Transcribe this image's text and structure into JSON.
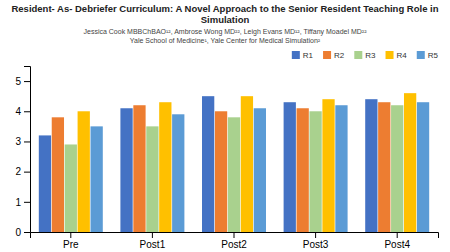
{
  "chart_data": {
    "type": "bar",
    "title": "Resident- As- Debriefer Curriculum: A Novel Approach to the Senior Resident Teaching Role in Simulation",
    "subtitle": "Jessica Cook MBBChBAO¹², Ambrose Wong MD²², Leigh Evans MD¹², Tiffany Moadel MD²²",
    "annotations": [
      "Yale School of Medicine¹, Yale Center for Medical Simulation²"
    ],
    "categories": [
      "Pre",
      "Post1",
      "Post2",
      "Post3",
      "Post4"
    ],
    "series": [
      {
        "name": "R1",
        "color": "#4472c4",
        "values": [
          3.2,
          4.1,
          4.5,
          4.3,
          4.4
        ]
      },
      {
        "name": "R2",
        "color": "#ed7d31",
        "values": [
          3.8,
          4.2,
          4.0,
          4.1,
          4.3
        ]
      },
      {
        "name": "R3",
        "color": "#a9d18e",
        "values": [
          2.9,
          3.5,
          3.8,
          4.0,
          4.2
        ]
      },
      {
        "name": "R4",
        "color": "#ffc000",
        "values": [
          4.0,
          4.3,
          4.5,
          4.4,
          4.6
        ]
      },
      {
        "name": "R5",
        "color": "#5b9bd5",
        "values": [
          3.5,
          3.9,
          4.1,
          4.2,
          4.3
        ]
      }
    ],
    "ylim": [
      0,
      5.5
    ],
    "yticks": [
      0,
      1,
      2,
      3,
      4,
      5
    ],
    "grid": false,
    "legend": "upper right"
  }
}
